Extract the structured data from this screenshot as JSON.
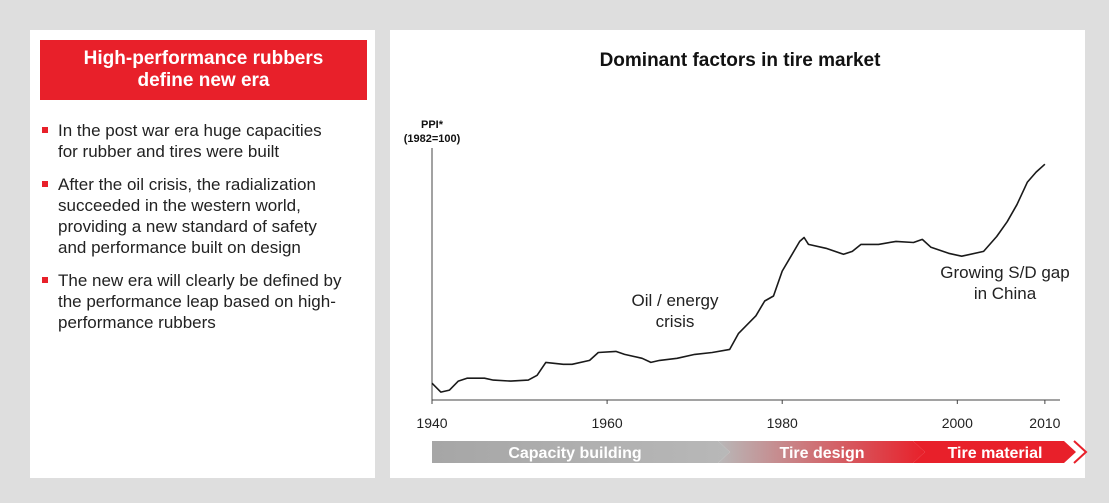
{
  "left_panel": {
    "title": "High-performance rubbers define new era",
    "bullets": [
      "In the post war era huge capacities for rubber and tires were built",
      "After the oil crisis, the radialization succeeded in the western world, providing a new standard of safety and performance built on design",
      "The new era will clearly be defined by the performance leap based on high-performance rubbers"
    ]
  },
  "chart_data": {
    "type": "line",
    "title": "Dominant factors in tire market",
    "y_label": "PPI*",
    "y_sublabel": "(1982=100)",
    "x": [
      1940,
      1941,
      1942,
      1943,
      1944,
      1946,
      1947,
      1949,
      1951,
      1952,
      1953,
      1955,
      1956,
      1958,
      1959,
      1961,
      1962,
      1964,
      1965,
      1966,
      1968,
      1970,
      1972,
      1974,
      1975,
      1977,
      1978,
      1979,
      1980,
      1981,
      1982,
      1982.5,
      1983,
      1985,
      1987,
      1988,
      1989,
      1991,
      1993,
      1995,
      1996,
      1997,
      1999,
      2000.5,
      2003,
      2004.5,
      2005.7,
      2006.8,
      2008,
      2009,
      2010
    ],
    "values": [
      10.4,
      4.9,
      6.1,
      11.7,
      13.5,
      13.5,
      12.3,
      11.7,
      12.3,
      15.3,
      23.3,
      22.1,
      22.1,
      24.5,
      29.4,
      30.1,
      28.2,
      25.8,
      23.3,
      24.5,
      25.8,
      28.2,
      29.4,
      31.3,
      41.1,
      52.1,
      61.3,
      64.4,
      79.8,
      89,
      98.2,
      100.6,
      96.3,
      93.9,
      90.2,
      92,
      96.3,
      96.3,
      98.2,
      97.5,
      99.4,
      94.5,
      90.8,
      89,
      92,
      101.2,
      110.4,
      120.9,
      134.9,
      141.1,
      146
    ],
    "color": "#1a1a1a",
    "xlim": [
      1940,
      2011.5
    ],
    "xticks": [
      1940,
      1960,
      1980,
      2000,
      2010
    ],
    "ylim": [
      0,
      156
    ],
    "annotations": [
      "Oil / energy crisis",
      "Growing S/D gap in China"
    ],
    "phases": [
      "Capacity building",
      "Tire design",
      "Tire material"
    ]
  }
}
